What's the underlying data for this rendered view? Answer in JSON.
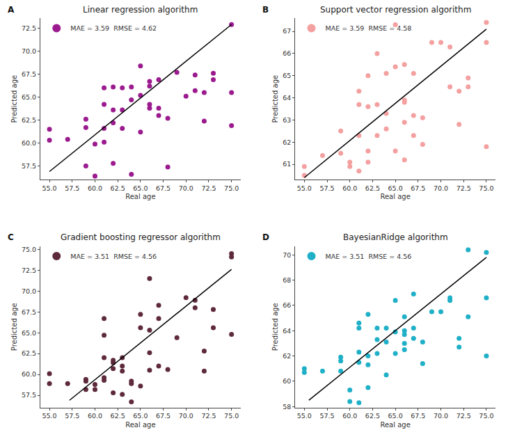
{
  "chart_data": [
    {
      "type": "scatter",
      "title": "Linear regression algorithm",
      "annotations": [
        "A"
      ],
      "x_label": "Real age",
      "y_label": "Predicted age",
      "xlim": [
        54.0,
        76.0
      ],
      "ylim": [
        56.0,
        73.6
      ],
      "xticks": [
        {
          "value": 55,
          "label": "55.0"
        },
        57.5,
        {
          "value": 60,
          "label": "60.0"
        },
        62.5,
        {
          "value": 65,
          "label": "65.0"
        },
        67.5,
        {
          "value": 70,
          "label": "70.0"
        },
        72.5,
        {
          "value": 75,
          "label": "75.0"
        }
      ],
      "yticks": [
        57.5,
        {
          "value": 60,
          "label": "60.0"
        },
        62.5,
        {
          "value": 65,
          "label": "65.0"
        },
        67.5,
        {
          "value": 70,
          "label": "70.0"
        },
        72.5
      ],
      "grid": false,
      "legend": "upper left",
      "series": [
        {
          "name": "MAE = 3.59  RMSE = 4.62",
          "type": "scatter",
          "color": "#9b1b8f",
          "x": [
            55,
            55,
            57,
            59,
            59,
            59,
            60,
            60,
            61,
            61,
            61,
            61,
            62,
            62,
            62,
            62,
            63,
            63,
            63,
            64,
            64,
            64,
            65,
            65,
            65,
            66,
            66,
            66,
            66,
            67,
            67,
            67,
            68,
            68,
            69,
            70,
            71,
            71,
            72,
            72,
            73,
            73,
            75,
            75,
            75
          ],
          "values": [
            61.5,
            60.3,
            60.4,
            62.6,
            61.7,
            57.5,
            59.9,
            56.4,
            66.0,
            64.2,
            61.6,
            60.1,
            66.1,
            63.6,
            62.2,
            57.8,
            66.0,
            63.6,
            61.6,
            66.1,
            64.7,
            56.6,
            68.4,
            65.2,
            61.2,
            66.7,
            66.2,
            64.2,
            63.8,
            66.9,
            63.8,
            63.0,
            62.7,
            57.4,
            67.7,
            65.1,
            67.4,
            65.7,
            65.5,
            62.4,
            67.6,
            66.9,
            72.9,
            65.5,
            61.9
          ]
        },
        {
          "type": "line",
          "color": "#000000",
          "x": [
            55,
            75
          ],
          "values": [
            56.9,
            72.9
          ]
        }
      ]
    },
    {
      "type": "scatter",
      "title": "Support vector regression algorithm",
      "annotations": [
        "B"
      ],
      "x_label": "Real age",
      "y_label": "Predicted age",
      "xlim": [
        54.0,
        76.0
      ],
      "ylim": [
        60.3,
        67.6
      ],
      "xticks": [
        {
          "value": 55,
          "label": "55.0"
        },
        57.5,
        {
          "value": 60,
          "label": "60.0"
        },
        62.5,
        {
          "value": 65,
          "label": "65.0"
        },
        67.5,
        {
          "value": 70,
          "label": "70.0"
        },
        72.5,
        {
          "value": 75,
          "label": "75.0"
        }
      ],
      "yticks": [
        61,
        62,
        63,
        64,
        65,
        66,
        67
      ],
      "grid": false,
      "legend": "upper left",
      "series": [
        {
          "name": "MAE = 3.59  RMSE = 4.58",
          "type": "scatter",
          "color": "#f4a0a0",
          "x": [
            55,
            55,
            57,
            59,
            59,
            60,
            60,
            61,
            61,
            61,
            61,
            62,
            62,
            62,
            62,
            63,
            63,
            63,
            64,
            64,
            64,
            65,
            65,
            65,
            66,
            66,
            66,
            66,
            66,
            67,
            67,
            67,
            68,
            68,
            69,
            70,
            71,
            71,
            72,
            72,
            73,
            73,
            75,
            75,
            75
          ],
          "values": [
            60.9,
            60.5,
            61.4,
            62.5,
            61.5,
            61.1,
            60.9,
            64.3,
            63.7,
            62.3,
            60.7,
            65.0,
            63.6,
            61.6,
            61.1,
            66.0,
            63.7,
            62.3,
            65.1,
            63.3,
            62.6,
            67.3,
            65.4,
            61.6,
            65.5,
            63.9,
            63.8,
            62.9,
            61.2,
            65.1,
            63.2,
            62.3,
            63.1,
            61.9,
            66.5,
            66.5,
            66.3,
            64.5,
            64.3,
            62.8,
            64.9,
            64.5,
            67.4,
            66.5,
            61.8
          ]
        },
        {
          "type": "line",
          "color": "#000000",
          "x": [
            55,
            75
          ],
          "values": [
            60.4,
            67.1
          ]
        }
      ]
    },
    {
      "type": "scatter",
      "title": "Gradient boosting regressor algorithm",
      "annotations": [
        "C"
      ],
      "x_label": "Real age",
      "y_label": "Predicted age",
      "xlim": [
        54.0,
        76.0
      ],
      "ylim": [
        56.0,
        75.4
      ],
      "xticks": [
        {
          "value": 55,
          "label": "55.0"
        },
        57.5,
        {
          "value": 60,
          "label": "60.0"
        },
        62.5,
        {
          "value": 65,
          "label": "65.0"
        },
        67.5,
        {
          "value": 70,
          "label": "70.0"
        },
        72.5,
        {
          "value": 75,
          "label": "75.0"
        }
      ],
      "yticks": [
        57.5,
        {
          "value": 60,
          "label": "60.0"
        },
        62.5,
        {
          "value": 65,
          "label": "65.0"
        },
        67.5,
        {
          "value": 70,
          "label": "70.0"
        },
        72.5,
        {
          "value": 75,
          "label": "75.0"
        }
      ],
      "grid": false,
      "legend": "upper left",
      "series": [
        {
          "name": "MAE = 3.51  RMSE = 4.56",
          "type": "scatter",
          "color": "#5e2a3b",
          "x": [
            55,
            55,
            57,
            59,
            59,
            59,
            60,
            60,
            61,
            61,
            61,
            61,
            61,
            62,
            62,
            62,
            62,
            63,
            63,
            63,
            63,
            64,
            64,
            64,
            65,
            65,
            65,
            66,
            66,
            66,
            66,
            67,
            67,
            67,
            68,
            69,
            70,
            71,
            71,
            72,
            72,
            73,
            73,
            75,
            75,
            75
          ],
          "values": [
            60.1,
            58.9,
            58.9,
            59.4,
            59.2,
            58.2,
            58.8,
            58.2,
            66.7,
            64.7,
            62.0,
            59.6,
            59.3,
            61.7,
            61.4,
            60.7,
            57.8,
            62.0,
            61.0,
            60.4,
            57.6,
            59.2,
            58.9,
            56.7,
            67.2,
            65.6,
            58.6,
            71.5,
            65.3,
            62.6,
            60.5,
            68.3,
            66.7,
            61.0,
            60.6,
            64.4,
            69.2,
            68.9,
            68.0,
            62.8,
            60.4,
            67.8,
            65.6,
            74.5,
            74.1,
            64.8
          ]
        },
        {
          "type": "line",
          "color": "#000000",
          "x": [
            57.2,
            75
          ],
          "values": [
            56.9,
            72.6
          ]
        }
      ]
    },
    {
      "type": "scatter",
      "title": "BayesianRidge algorithm",
      "annotations": [
        "D"
      ],
      "x_label": "Real age",
      "y_label": "Predicted age",
      "xlim": [
        54.0,
        76.0
      ],
      "ylim": [
        57.9,
        70.7
      ],
      "xticks": [
        {
          "value": 55,
          "label": "55.0"
        },
        57.5,
        {
          "value": 60,
          "label": "60.0"
        },
        62.5,
        {
          "value": 65,
          "label": "65.0"
        },
        67.5,
        {
          "value": 70,
          "label": "70.0"
        },
        72.5,
        {
          "value": 75,
          "label": "75.0"
        }
      ],
      "yticks": [
        58,
        60,
        62,
        64,
        66,
        68,
        70
      ],
      "grid": false,
      "legend": "upper left",
      "series": [
        {
          "name": "MAE = 3.51  RMSE = 4.56",
          "type": "scatter",
          "color": "#1fb0c8",
          "x": [
            55,
            55,
            57,
            59,
            59,
            59,
            60,
            60,
            61,
            61,
            61,
            61,
            61,
            62,
            62,
            62,
            62,
            63,
            63,
            63,
            64,
            64,
            64,
            65,
            65,
            65,
            66,
            66,
            66,
            66,
            66,
            67,
            67,
            67,
            68,
            68,
            69,
            70,
            71,
            71,
            72,
            72,
            73,
            73,
            75,
            75,
            75
          ],
          "values": [
            61.0,
            60.7,
            60.8,
            61.9,
            61.6,
            60.8,
            59.3,
            58.4,
            64.6,
            64.2,
            62.3,
            61.5,
            58.3,
            65.3,
            62.0,
            61.3,
            59.5,
            64.2,
            63.3,
            62.2,
            64.2,
            63.1,
            60.5,
            66.4,
            63.9,
            62.2,
            65.1,
            64.0,
            63.7,
            63.0,
            62.5,
            66.9,
            64.2,
            63.4,
            63.1,
            61.4,
            65.5,
            65.5,
            66.6,
            66.4,
            63.4,
            62.7,
            70.4,
            65.1,
            70.2,
            66.6,
            62.0
          ]
        },
        {
          "type": "line",
          "color": "#000000",
          "x": [
            55.5,
            75
          ],
          "values": [
            58.5,
            69.8
          ]
        }
      ]
    }
  ]
}
